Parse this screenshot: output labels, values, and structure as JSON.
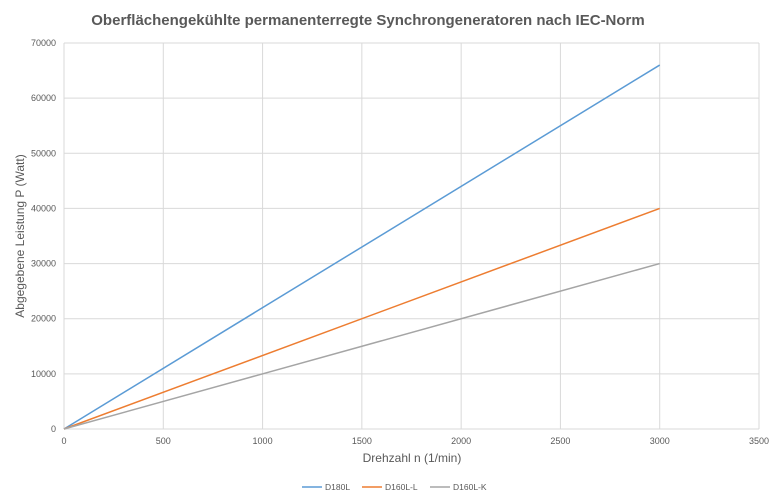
{
  "chart_data": {
    "type": "line",
    "title": "Oberflächengekühlte permanenterregte Synchrongeneratoren nach IEC-Norm",
    "xlabel": "Drehzahl n (1/min)",
    "ylabel": "Abgegebene Leistung P (Watt)",
    "xlim": [
      0,
      3500
    ],
    "ylim": [
      0,
      70000
    ],
    "xticks": [
      0,
      500,
      1000,
      1500,
      2000,
      2500,
      3000,
      3500
    ],
    "yticks": [
      0,
      10000,
      20000,
      30000,
      40000,
      50000,
      60000,
      70000
    ],
    "xtick_labels": [
      "0",
      "500",
      "1000",
      "1500",
      "2000",
      "2500",
      "3000",
      "3500"
    ],
    "ytick_labels": [
      "0",
      "10000",
      "20000",
      "30000",
      "40000",
      "50000",
      "60000",
      "70000"
    ],
    "grid": true,
    "legend_position": "bottom",
    "series": [
      {
        "name": "D180L",
        "color": "#5b9bd5",
        "x": [
          0,
          3000
        ],
        "y": [
          0,
          66000
        ]
      },
      {
        "name": "D160L-L",
        "color": "#ed7d31",
        "x": [
          0,
          3000
        ],
        "y": [
          0,
          40000
        ]
      },
      {
        "name": "D160L-K",
        "color": "#a5a5a5",
        "x": [
          0,
          3000
        ],
        "y": [
          0,
          30000
        ]
      }
    ]
  }
}
